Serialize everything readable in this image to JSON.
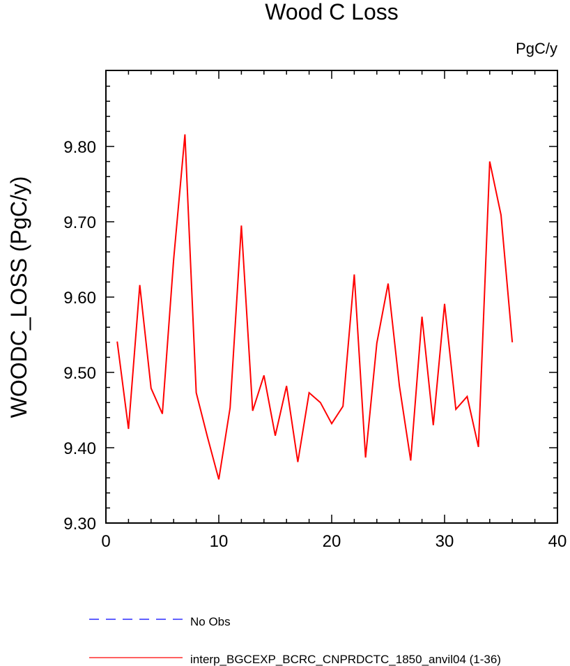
{
  "chart_data": {
    "type": "line",
    "title": "Wood C Loss",
    "units_label": "PgC/y",
    "xlabel": "",
    "ylabel": "WOODC_LOSS  (PgC/y)",
    "xlim": [
      0,
      40
    ],
    "ylim": [
      9.3,
      9.9
    ],
    "xticks": [
      "0",
      "10",
      "20",
      "30",
      "40"
    ],
    "yticks": [
      "9.30",
      "9.40",
      "9.50",
      "9.60",
      "9.70",
      "9.80"
    ],
    "grid": false,
    "legend_position": "bottom",
    "series": [
      {
        "name": "No Obs",
        "color": "#0000ff",
        "dash": true,
        "x": [],
        "values": []
      },
      {
        "name": "interp_BGCEXP_BCRC_CNPRDCTC_1850_anvil04 (1-36)",
        "color": "#ff0000",
        "dash": false,
        "x": [
          1,
          2,
          3,
          4,
          5,
          6,
          7,
          8,
          9,
          10,
          11,
          12,
          13,
          14,
          15,
          16,
          17,
          18,
          19,
          20,
          21,
          22,
          23,
          24,
          25,
          26,
          27,
          28,
          29,
          30,
          31,
          32,
          33,
          34,
          35,
          36
        ],
        "values": [
          9.541,
          9.425,
          9.616,
          9.479,
          9.445,
          9.65,
          9.816,
          9.473,
          9.414,
          9.358,
          9.453,
          9.695,
          9.449,
          9.496,
          9.416,
          9.482,
          9.381,
          9.473,
          9.46,
          9.432,
          9.455,
          9.63,
          9.387,
          9.539,
          9.618,
          9.482,
          9.383,
          9.574,
          9.43,
          9.591,
          9.451,
          9.468,
          9.401,
          9.78,
          9.709,
          9.54
        ]
      }
    ]
  }
}
